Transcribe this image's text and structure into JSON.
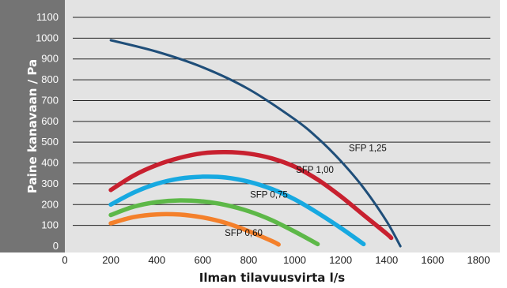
{
  "chart_data": {
    "type": "line",
    "xlabel": "Ilman tilavuusvirta l/s",
    "ylabel": "Paine kanavaan / Pa",
    "xlim": [
      0,
      1900
    ],
    "ylim": [
      -30,
      1150
    ],
    "x_ticks": [
      "0",
      "200",
      "400",
      "600",
      "800",
      "1000",
      "1200",
      "1400",
      "1600",
      "1800"
    ],
    "y_ticks": [
      "0",
      "100",
      "200",
      "300",
      "400",
      "500",
      "600",
      "700",
      "800",
      "900",
      "1000",
      "1100"
    ],
    "grid": "horizontal",
    "series": [
      {
        "name": "",
        "color": "#1f4e79",
        "points": [
          [
            200,
            990
          ],
          [
            400,
            935
          ],
          [
            600,
            860
          ],
          [
            800,
            755
          ],
          [
            1000,
            610
          ],
          [
            1100,
            520
          ],
          [
            1200,
            410
          ],
          [
            1300,
            280
          ],
          [
            1400,
            120
          ],
          [
            1460,
            0
          ]
        ]
      },
      {
        "name": "SFP 1,25",
        "color": "#c8202f",
        "points": [
          [
            200,
            270
          ],
          [
            300,
            340
          ],
          [
            400,
            390
          ],
          [
            500,
            425
          ],
          [
            600,
            447
          ],
          [
            700,
            452
          ],
          [
            800,
            445
          ],
          [
            900,
            422
          ],
          [
            1000,
            382
          ],
          [
            1100,
            320
          ],
          [
            1200,
            240
          ],
          [
            1300,
            150
          ],
          [
            1400,
            60
          ],
          [
            1420,
            40
          ]
        ]
      },
      {
        "name": "SFP 1,00",
        "color": "#17a9e1",
        "points": [
          [
            200,
            200
          ],
          [
            300,
            258
          ],
          [
            400,
            300
          ],
          [
            500,
            325
          ],
          [
            600,
            334
          ],
          [
            700,
            330
          ],
          [
            800,
            310
          ],
          [
            900,
            275
          ],
          [
            1000,
            225
          ],
          [
            1100,
            160
          ],
          [
            1200,
            88
          ],
          [
            1300,
            10
          ]
        ]
      },
      {
        "name": "SFP 0,75",
        "color": "#5db848",
        "points": [
          [
            200,
            150
          ],
          [
            300,
            190
          ],
          [
            400,
            212
          ],
          [
            500,
            220
          ],
          [
            600,
            215
          ],
          [
            700,
            198
          ],
          [
            800,
            168
          ],
          [
            900,
            125
          ],
          [
            1000,
            70
          ],
          [
            1100,
            10
          ]
        ]
      },
      {
        "name": "SFP 0,60",
        "color": "#f4802b",
        "points": [
          [
            200,
            110
          ],
          [
            300,
            140
          ],
          [
            400,
            153
          ],
          [
            500,
            152
          ],
          [
            600,
            138
          ],
          [
            700,
            112
          ],
          [
            800,
            72
          ],
          [
            900,
            25
          ],
          [
            930,
            8
          ]
        ]
      }
    ],
    "labels": [
      {
        "text": "SFP 1,25",
        "x": 1400,
        "y": 458
      },
      {
        "text": "SFP 1,00",
        "x": 1170,
        "y": 353
      },
      {
        "text": "SFP 0,75",
        "x": 970,
        "y": 233
      },
      {
        "text": "SFP 0,60",
        "x": 860,
        "y": 50
      }
    ],
    "colors": {
      "plot_bg": "#e3e3e3",
      "y_axis_bg": "#747474",
      "grid": "#222222"
    }
  }
}
